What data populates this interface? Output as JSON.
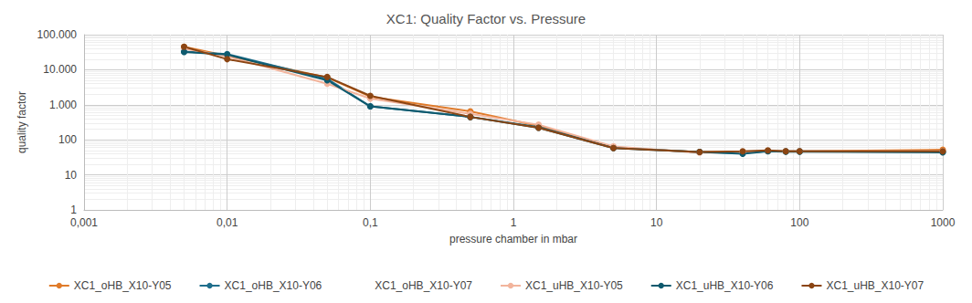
{
  "chart_data": {
    "type": "line",
    "title": "XC1: Quality Factor vs. Pressure",
    "x_label": "pressure chamber in mbar",
    "y_label": "quality factor",
    "log": true,
    "grid": true,
    "legend": "bottom",
    "marker": "circle",
    "x": [
      0.005,
      0.01,
      0.05,
      0.1,
      0.5,
      1.5,
      5,
      20,
      40,
      60,
      80,
      100,
      1000
    ],
    "series": [
      {
        "name": "XC1_oHB_X10-Y05",
        "color": "#e07b2a",
        "values": [
          45000,
          25000,
          6000,
          1700,
          650,
          250,
          60,
          45,
          45,
          48,
          47,
          47,
          52
        ]
      },
      {
        "name": "XC1_oHB_X10-Y06",
        "color": "#1f6e8c",
        "values": [
          33000,
          28000,
          5500,
          900,
          450,
          230,
          60,
          45,
          42,
          48,
          47,
          47,
          45
        ]
      },
      {
        "name": "XC1_oHB_X10-Y07",
        "color": "#ffffff",
        "values": [
          null,
          null,
          null,
          null,
          null,
          null,
          null,
          null,
          null,
          null,
          null,
          null,
          null
        ]
      },
      {
        "name": "XC1_uHB_X10-Y05",
        "color": "#f2b49c",
        "values": [
          40000,
          24000,
          4000,
          1500,
          550,
          270,
          65,
          43,
          44,
          48,
          47,
          47,
          48
        ]
      },
      {
        "name": "XC1_uHB_X10-Y06",
        "color": "#0e5a6e",
        "values": [
          32000,
          27000,
          5000,
          900,
          450,
          220,
          58,
          45,
          40,
          47,
          46,
          46,
          44
        ]
      },
      {
        "name": "XC1_uHB_X10-Y07",
        "color": "#8b4513",
        "values": [
          45000,
          20000,
          6200,
          1800,
          450,
          220,
          58,
          45,
          47,
          50,
          47,
          47,
          47
        ]
      }
    ],
    "xlim": [
      0.001,
      1000
    ],
    "xticks": [
      {
        "value": 0.001,
        "label": "0,001"
      },
      {
        "value": 0.01,
        "label": "0,01"
      },
      {
        "value": 0.1,
        "label": "0,1"
      },
      1,
      10,
      100,
      1000
    ],
    "ylim": [
      1,
      100000
    ],
    "yticks": [
      1,
      10,
      100,
      {
        "value": 1000,
        "label": "1.000"
      },
      {
        "value": 10000,
        "label": "10.000"
      },
      {
        "value": 100000,
        "label": "100.000"
      }
    ]
  }
}
